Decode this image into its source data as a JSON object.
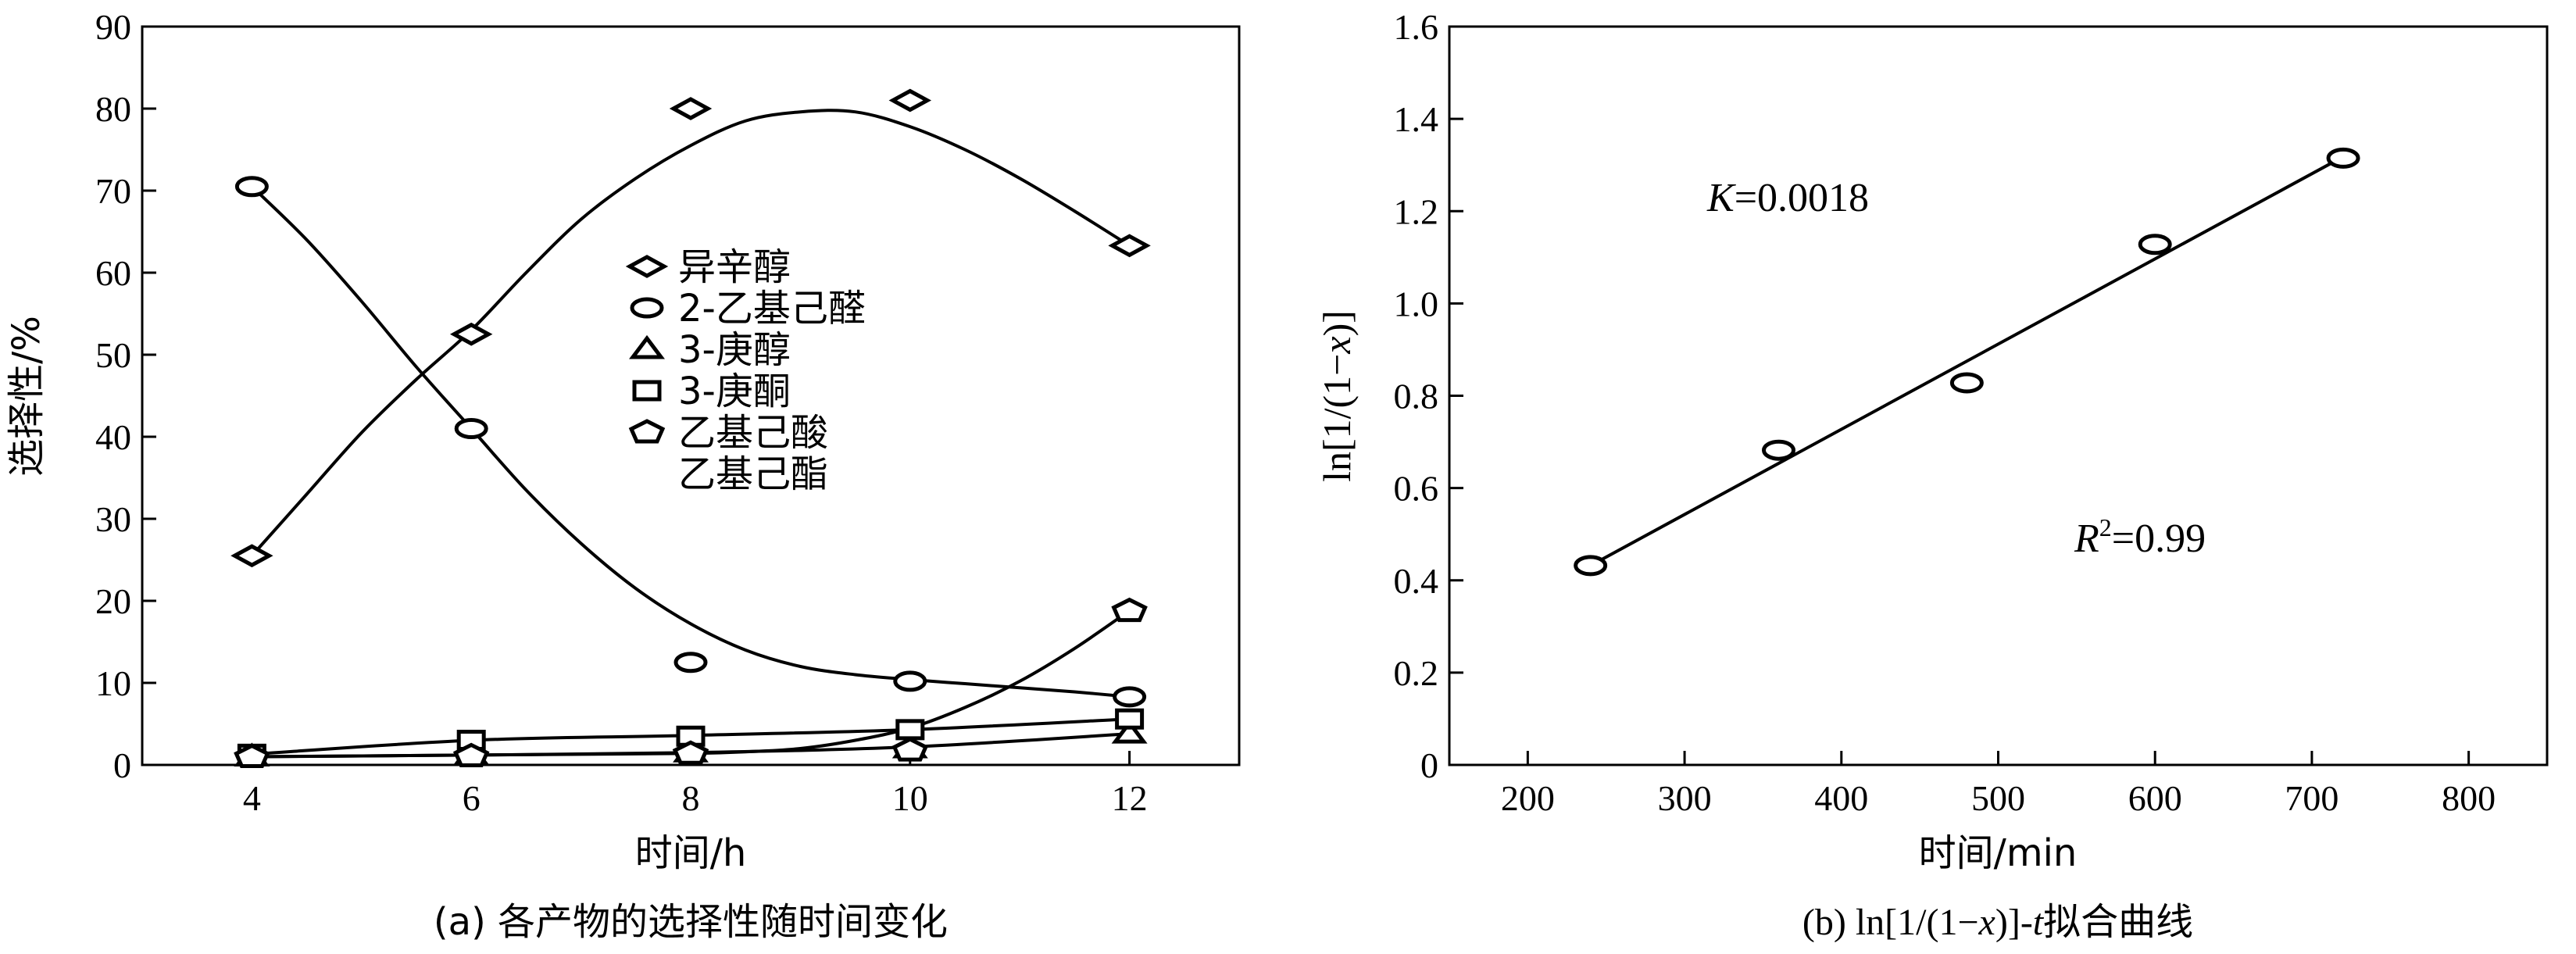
{
  "chart_data": [
    {
      "type": "line",
      "caption": "(a) 各产物的选择性随时间变化",
      "xlabel": "时间/h",
      "ylabel": "选择性/%",
      "xlim": [
        3,
        13
      ],
      "ylim": [
        0,
        90
      ],
      "xticks": [
        4,
        6,
        8,
        10,
        12
      ],
      "yticks": [
        0,
        10,
        20,
        30,
        40,
        50,
        60,
        70,
        80,
        90
      ],
      "legend_position": "center",
      "series": [
        {
          "name": "异辛醇",
          "marker": "diamond",
          "x": [
            4,
            6,
            8,
            10,
            12
          ],
          "y": [
            25.5,
            52.5,
            80,
            81,
            63.3
          ],
          "curve_x": [
            4,
            4.5,
            5,
            5.5,
            6,
            6.5,
            7,
            7.5,
            8,
            8.5,
            9,
            9.5,
            10,
            10.5,
            11,
            11.5,
            12
          ],
          "curve_y": [
            25.5,
            33,
            40.5,
            47,
            53,
            60,
            66.5,
            71.5,
            75.5,
            78.5,
            79.6,
            79.6,
            77.8,
            75,
            71.5,
            67.5,
            63.3
          ]
        },
        {
          "name": "2-乙基己醛",
          "marker": "circle",
          "x": [
            4,
            6,
            8,
            10,
            12
          ],
          "y": [
            70.5,
            41,
            12.5,
            10.2,
            8.3
          ],
          "curve_x": [
            4,
            4.5,
            5,
            5.5,
            6,
            6.5,
            7,
            7.5,
            8,
            8.5,
            9,
            9.5,
            10,
            10.5,
            11,
            11.5,
            12
          ],
          "curve_y": [
            70.5,
            64,
            56.5,
            48.5,
            41,
            33.5,
            27,
            21.5,
            17.2,
            14,
            12,
            11,
            10.4,
            9.9,
            9.4,
            8.9,
            8.3
          ]
        },
        {
          "name": "3-庚醇",
          "marker": "triangle",
          "x": [
            4,
            6,
            8,
            10,
            12
          ],
          "y": [
            1.0,
            1.2,
            1.5,
            2.0,
            3.8
          ],
          "curve_x": [
            4,
            6,
            8,
            10,
            12
          ],
          "curve_y": [
            1.0,
            1.2,
            1.5,
            2.2,
            3.8
          ]
        },
        {
          "name": "3-庚酮",
          "marker": "square",
          "x": [
            4,
            6,
            8,
            10,
            12
          ],
          "y": [
            1.3,
            3.0,
            3.5,
            4.3,
            5.6
          ],
          "curve_x": [
            4,
            6,
            8,
            10,
            12
          ],
          "curve_y": [
            1.3,
            3.0,
            3.6,
            4.3,
            5.6
          ]
        },
        {
          "name": "乙基己酸",
          "name_line2": "乙基己酯",
          "marker": "pentagon",
          "x": [
            4,
            6,
            8,
            10,
            12
          ],
          "y": [
            1.0,
            1.1,
            1.4,
            1.8,
            18.8
          ],
          "curve_x": [
            4,
            5,
            6,
            7,
            8,
            8.5,
            9,
            9.5,
            10,
            10.5,
            11,
            11.5,
            12
          ],
          "curve_y": [
            1.0,
            1.1,
            1.2,
            1.3,
            1.4,
            1.6,
            2.0,
            3.0,
            4.5,
            7.0,
            10.2,
            14.2,
            18.8
          ]
        }
      ]
    },
    {
      "type": "scatter",
      "caption_parts": [
        "(b) ln[1/(1−",
        "x",
        ")]-",
        "t",
        "拟合曲线"
      ],
      "xlabel": "时间/min",
      "ylabel_parts": [
        "ln[1/(1−",
        "x",
        ")]"
      ],
      "xlim": [
        150,
        850
      ],
      "ylim": [
        0,
        1.6
      ],
      "xticks": [
        200,
        300,
        400,
        500,
        600,
        700,
        800
      ],
      "yticks": [
        0,
        0.2,
        0.4,
        0.6,
        0.8,
        1.0,
        1.2,
        1.4,
        1.6
      ],
      "ytick_labels": [
        "0",
        "0.2",
        "0.4",
        "0.6",
        "0.8",
        "1.0",
        "1.2",
        "1.4",
        "1.6"
      ],
      "points": {
        "x": [
          240,
          360,
          480,
          600,
          720
        ],
        "y": [
          0.432,
          0.682,
          0.828,
          1.128,
          1.315
        ]
      },
      "fit_line": {
        "x": [
          240,
          720
        ],
        "y": [
          0.432,
          1.318
        ]
      },
      "annotations": {
        "k_italic": "K",
        "k_value": "=0.0018",
        "r_italic": "R",
        "r_sup": "2",
        "r_value": "=0.99"
      }
    }
  ]
}
